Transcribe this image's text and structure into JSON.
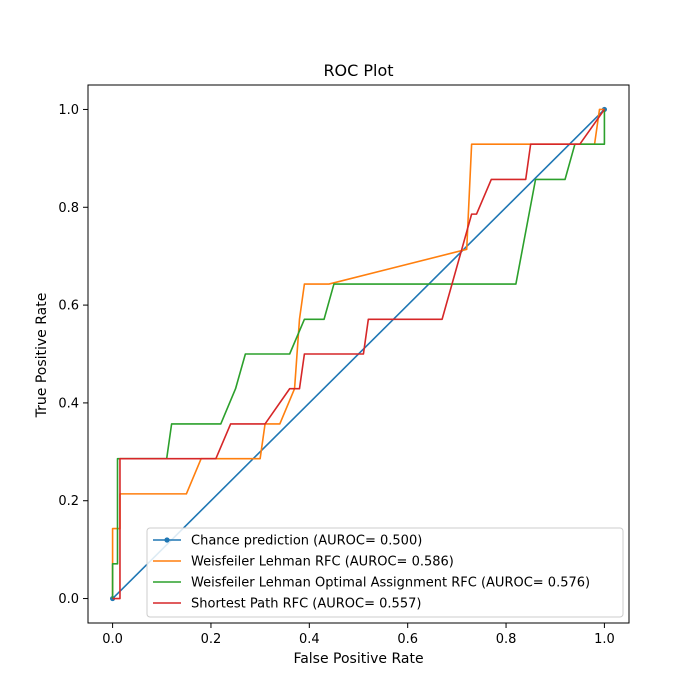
{
  "chart_data": {
    "type": "line",
    "title": "ROC Plot",
    "xlabel": "False Positive Rate",
    "ylabel": "True Positive Rate",
    "xlim": [
      -0.05,
      1.05
    ],
    "ylim": [
      -0.05,
      1.05
    ],
    "xticks": [
      0.0,
      0.2,
      0.4,
      0.6,
      0.8,
      1.0
    ],
    "yticks": [
      0.0,
      0.2,
      0.4,
      0.6,
      0.8,
      1.0
    ],
    "xtick_labels": [
      "0.0",
      "0.2",
      "0.4",
      "0.6",
      "0.8",
      "1.0"
    ],
    "ytick_labels": [
      "0.0",
      "0.2",
      "0.4",
      "0.6",
      "0.8",
      "1.0"
    ],
    "grid": false,
    "legend_position": "lower-right",
    "series": [
      {
        "name": "Chance prediction (AUROC= 0.500)",
        "color": "#1f77b4",
        "marker": "dot",
        "x": [
          0,
          1
        ],
        "y": [
          0,
          1
        ]
      },
      {
        "name": "Weisfeiler Lehman RFC (AUROC= 0.586)",
        "color": "#ff7f0e",
        "x": [
          0,
          0,
          0.015,
          0.015,
          0.15,
          0.18,
          0.22,
          0.3,
          0.31,
          0.34,
          0.37,
          0.38,
          0.39,
          0.44,
          0.72,
          0.73,
          0.98,
          0.99,
          1.0
        ],
        "y": [
          0,
          0.143,
          0.143,
          0.214,
          0.214,
          0.286,
          0.286,
          0.286,
          0.357,
          0.357,
          0.429,
          0.571,
          0.643,
          0.643,
          0.714,
          0.929,
          0.929,
          1.0,
          1.0
        ]
      },
      {
        "name": "Weisfeiler Lehman Optimal Assignment RFC (AUROC= 0.576)",
        "color": "#2ca02c",
        "x": [
          0,
          0,
          0.01,
          0.01,
          0.11,
          0.12,
          0.22,
          0.25,
          0.27,
          0.36,
          0.39,
          0.43,
          0.45,
          0.82,
          0.86,
          0.92,
          0.94,
          1.0,
          1.0
        ],
        "y": [
          0,
          0.071,
          0.071,
          0.286,
          0.286,
          0.357,
          0.357,
          0.429,
          0.5,
          0.5,
          0.571,
          0.571,
          0.643,
          0.643,
          0.857,
          0.857,
          0.929,
          0.929,
          1.0
        ]
      },
      {
        "name": "Shortest Path RFC (AUROC= 0.557)",
        "color": "#d62728",
        "x": [
          0,
          0.015,
          0.015,
          0.18,
          0.21,
          0.24,
          0.31,
          0.36,
          0.38,
          0.39,
          0.5,
          0.51,
          0.52,
          0.67,
          0.71,
          0.73,
          0.74,
          0.77,
          0.84,
          0.85,
          0.93,
          0.95,
          1.0
        ],
        "y": [
          0,
          0,
          0.286,
          0.286,
          0.286,
          0.357,
          0.357,
          0.429,
          0.429,
          0.5,
          0.5,
          0.5,
          0.571,
          0.571,
          0.714,
          0.786,
          0.786,
          0.857,
          0.857,
          0.929,
          0.929,
          0.929,
          1.0
        ]
      }
    ]
  }
}
